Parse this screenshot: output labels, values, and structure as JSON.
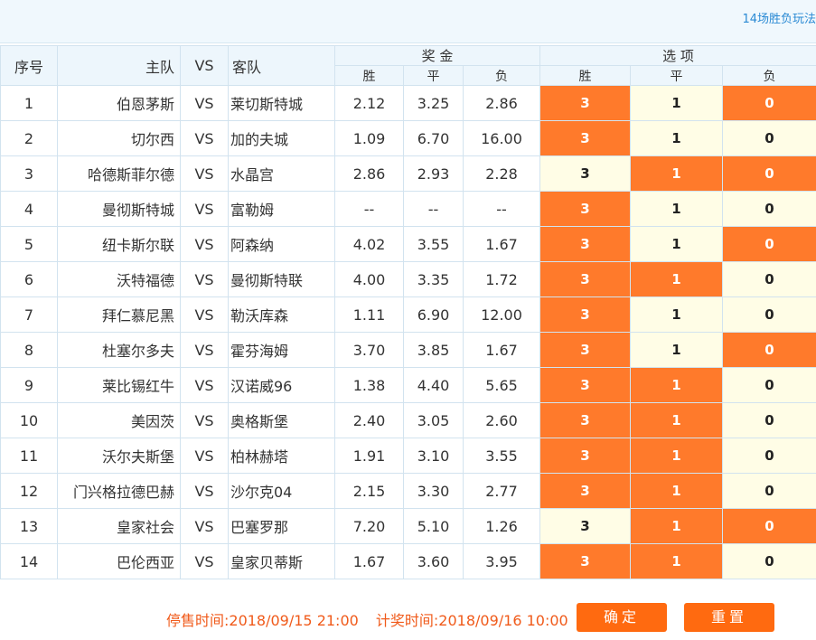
{
  "header": {
    "title": "14场胜负玩法"
  },
  "columns": {
    "seq": "序号",
    "home": "主队",
    "vs": "VS",
    "away": "客队",
    "odds_group": "奖 金",
    "select_group": "选 项",
    "win": "胜",
    "draw": "平",
    "lose": "负"
  },
  "matches": [
    {
      "seq": "1",
      "home": "伯恩茅斯",
      "vs": "VS",
      "away": "莱切斯特城",
      "win": "2.12",
      "draw": "3.25",
      "lose": "2.86",
      "sel": [
        true,
        false,
        true
      ]
    },
    {
      "seq": "2",
      "home": "切尔西",
      "vs": "VS",
      "away": "加的夫城",
      "win": "1.09",
      "draw": "6.70",
      "lose": "16.00",
      "sel": [
        true,
        false,
        false
      ]
    },
    {
      "seq": "3",
      "home": "哈德斯菲尔德",
      "vs": "VS",
      "away": "水晶宫",
      "win": "2.86",
      "draw": "2.93",
      "lose": "2.28",
      "sel": [
        false,
        true,
        true
      ]
    },
    {
      "seq": "4",
      "home": "曼彻斯特城",
      "vs": "VS",
      "away": "富勒姆",
      "win": "--",
      "draw": "--",
      "lose": "--",
      "sel": [
        true,
        false,
        false
      ]
    },
    {
      "seq": "5",
      "home": "纽卡斯尔联",
      "vs": "VS",
      "away": "阿森纳",
      "win": "4.02",
      "draw": "3.55",
      "lose": "1.67",
      "sel": [
        true,
        false,
        true
      ]
    },
    {
      "seq": "6",
      "home": "沃特福德",
      "vs": "VS",
      "away": "曼彻斯特联",
      "win": "4.00",
      "draw": "3.35",
      "lose": "1.72",
      "sel": [
        true,
        true,
        false
      ]
    },
    {
      "seq": "7",
      "home": "拜仁慕尼黑",
      "vs": "VS",
      "away": "勒沃库森",
      "win": "1.11",
      "draw": "6.90",
      "lose": "12.00",
      "sel": [
        true,
        false,
        false
      ]
    },
    {
      "seq": "8",
      "home": "杜塞尔多夫",
      "vs": "VS",
      "away": "霍芬海姆",
      "win": "3.70",
      "draw": "3.85",
      "lose": "1.67",
      "sel": [
        true,
        false,
        true
      ]
    },
    {
      "seq": "9",
      "home": "莱比锡红牛",
      "vs": "VS",
      "away": "汉诺威96",
      "win": "1.38",
      "draw": "4.40",
      "lose": "5.65",
      "sel": [
        true,
        true,
        false
      ]
    },
    {
      "seq": "10",
      "home": "美因茨",
      "vs": "VS",
      "away": "奥格斯堡",
      "win": "2.40",
      "draw": "3.05",
      "lose": "2.60",
      "sel": [
        true,
        true,
        false
      ]
    },
    {
      "seq": "11",
      "home": "沃尔夫斯堡",
      "vs": "VS",
      "away": "柏林赫塔",
      "win": "1.91",
      "draw": "3.10",
      "lose": "3.55",
      "sel": [
        true,
        true,
        false
      ]
    },
    {
      "seq": "12",
      "home": "门兴格拉德巴赫",
      "vs": "VS",
      "away": "沙尔克04",
      "win": "2.15",
      "draw": "3.30",
      "lose": "2.77",
      "sel": [
        true,
        true,
        false
      ]
    },
    {
      "seq": "13",
      "home": "皇家社会",
      "vs": "VS",
      "away": "巴塞罗那",
      "win": "7.20",
      "draw": "5.10",
      "lose": "1.26",
      "sel": [
        false,
        true,
        true
      ]
    },
    {
      "seq": "14",
      "home": "巴伦西亚",
      "vs": "VS",
      "away": "皇家贝蒂斯",
      "win": "1.67",
      "draw": "3.60",
      "lose": "3.95",
      "sel": [
        true,
        true,
        false
      ]
    }
  ],
  "options": {
    "win": "3",
    "draw": "1",
    "lose": "0"
  },
  "colors": {
    "selected": "#ff7a2b",
    "unselected": "#fffde6",
    "accent": "#f05a1a"
  },
  "footer": {
    "stop_time": "停售时间:2018/09/15 21:00",
    "draw_time": "计奖时间:2018/09/16 10:00",
    "confirm_label": "确定",
    "reset_label": "重置"
  }
}
